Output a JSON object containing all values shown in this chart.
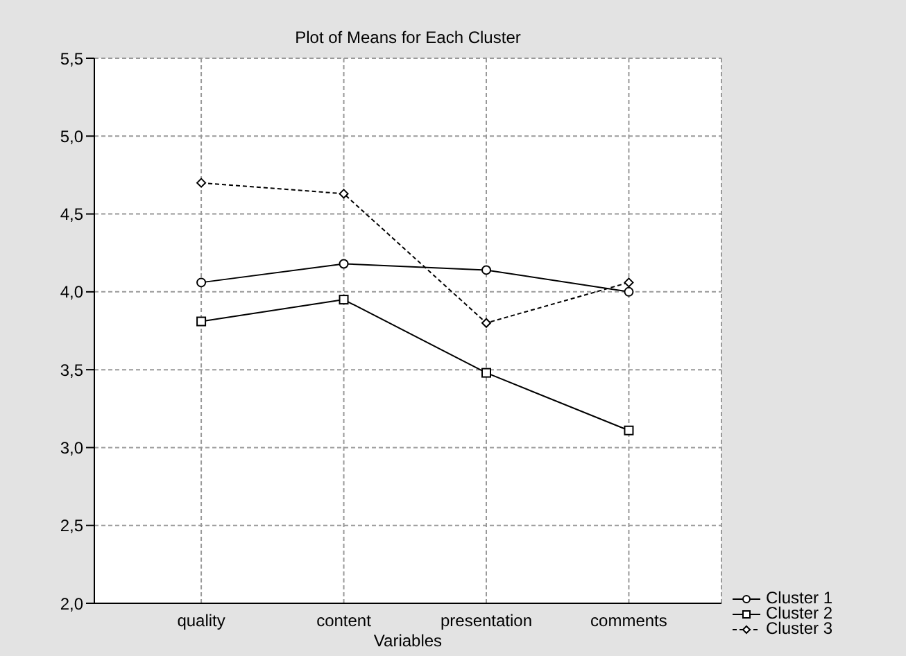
{
  "chart_data": {
    "type": "line",
    "title": "Plot of Means for Each Cluster",
    "xlabel": "Variables",
    "categories": [
      "quality",
      "content",
      "presentation",
      "comments"
    ],
    "series": [
      {
        "name": "Cluster  1",
        "color": "#000000",
        "values": [
          4.06,
          4.18,
          4.14,
          4.0
        ],
        "marker": "circle",
        "line_style": "solid"
      },
      {
        "name": "Cluster  2",
        "color": "#000000",
        "values": [
          3.81,
          3.95,
          3.48,
          3.11
        ],
        "marker": "square",
        "line_style": "solid"
      },
      {
        "name": "Cluster  3",
        "color": "#000000",
        "values": [
          4.7,
          4.63,
          3.8,
          4.06
        ],
        "marker": "diamond",
        "line_style": "dashed"
      }
    ],
    "ylim": [
      2.0,
      5.5
    ],
    "yticks": [
      {
        "value": 2.0,
        "label": "2,0"
      },
      {
        "value": 2.5,
        "label": "2,5"
      },
      {
        "value": 3.0,
        "label": "3,0"
      },
      {
        "value": 3.5,
        "label": "3,5"
      },
      {
        "value": 4.0,
        "label": "4,0"
      },
      {
        "value": 4.5,
        "label": "4,5"
      },
      {
        "value": 5.0,
        "label": "5,0"
      },
      {
        "value": 5.5,
        "label": "5,5"
      }
    ],
    "grid": true,
    "legend": "bottom right"
  }
}
